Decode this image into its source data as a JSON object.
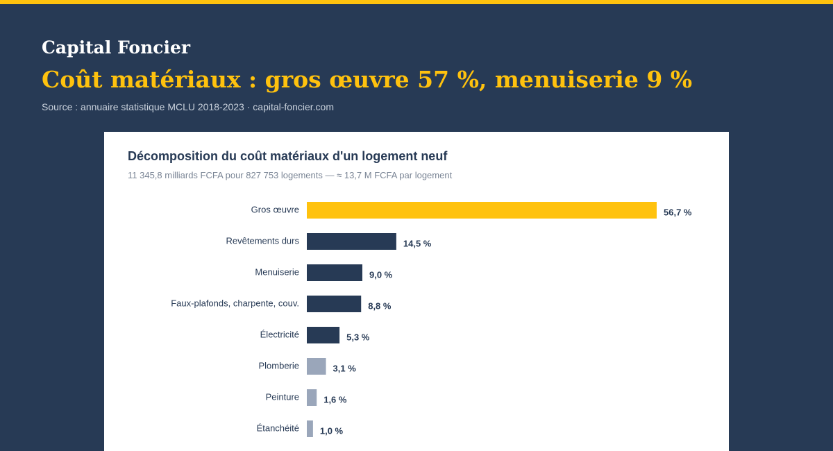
{
  "header": {
    "brand": "Capital Foncier",
    "headline": "Coût matériaux : gros œuvre 57 %, menuiserie 9 %",
    "source": "Source : annuaire statistique MCLU 2018-2023 · capital-foncier.com"
  },
  "colors": {
    "background": "#273a55",
    "accent": "#ffc20e",
    "bar_dark": "#273a55",
    "bar_light": "#9aa6ba"
  },
  "chart_data": {
    "type": "bar",
    "orientation": "horizontal",
    "title": "Décomposition du coût matériaux d'un logement neuf",
    "subtitle": "11 345,8 milliards FCFA pour 827 753 logements — ≈ 13,7 M FCFA par logement",
    "categories": [
      "Gros œuvre",
      "Revêtements durs",
      "Menuiserie",
      "Faux-plafonds, charpente, couv.",
      "Électricité",
      "Plomberie",
      "Peinture",
      "Étanchéité"
    ],
    "values": [
      56.7,
      14.5,
      9.0,
      8.8,
      5.3,
      3.1,
      1.6,
      1.0
    ],
    "value_labels": [
      "56,7 %",
      "14,5 %",
      "9,0 %",
      "8,8 %",
      "5,3 %",
      "3,1 %",
      "1,6 %",
      "1,0 %"
    ],
    "bar_colors": [
      "#ffc20e",
      "#273a55",
      "#273a55",
      "#273a55",
      "#273a55",
      "#9aa6ba",
      "#9aa6ba",
      "#9aa6ba"
    ],
    "unit": "%",
    "xlim": [
      0,
      56.7
    ],
    "grid": false,
    "legend": false
  }
}
